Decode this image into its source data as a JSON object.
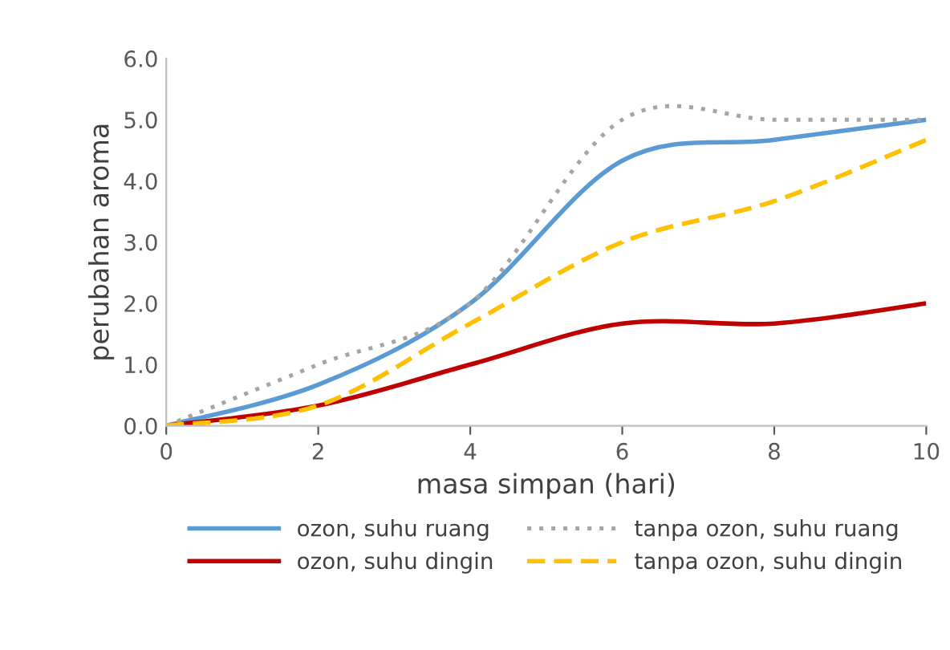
{
  "chart_data": {
    "type": "line",
    "xlabel": "masa simpan (hari)",
    "ylabel": "perubahan aroma",
    "x": [
      0,
      2,
      4,
      6,
      8,
      10
    ],
    "series": [
      {
        "name": "ozon, suhu ruang",
        "color": "#5b9bd5",
        "line_style": "solid",
        "values": [
          0,
          0.67,
          2.0,
          4.33,
          4.67,
          5.0
        ]
      },
      {
        "name": "ozon, suhu dingin",
        "color": "#c00000",
        "line_style": "solid",
        "values": [
          0,
          0.33,
          1.0,
          1.67,
          1.67,
          2.0
        ]
      },
      {
        "name": "tanpa ozon, suhu ruang",
        "color": "#a5a5a5",
        "line_style": "dotted",
        "values": [
          0,
          1.0,
          2.0,
          5.0,
          5.0,
          5.0
        ]
      },
      {
        "name": "tanpa ozon, suhu dingin",
        "color": "#ffc000",
        "line_style": "dashed",
        "values": [
          0,
          0.33,
          1.67,
          3.0,
          3.67,
          4.67
        ]
      }
    ],
    "xlim": [
      0,
      10
    ],
    "xticks": [
      0,
      2,
      4,
      6,
      8,
      10
    ],
    "ylim": [
      0,
      6
    ],
    "yticks": [
      {
        "value": 0,
        "label": "0.0"
      },
      {
        "value": 1,
        "label": "1.0"
      },
      {
        "value": 2,
        "label": "2.0"
      },
      {
        "value": 3,
        "label": "3.0"
      },
      {
        "value": 4,
        "label": "4.0"
      },
      {
        "value": 5,
        "label": "5.0"
      },
      {
        "value": 6,
        "label": "6.0"
      }
    ],
    "grid": false,
    "legend": "bottom",
    "marker": "none"
  }
}
